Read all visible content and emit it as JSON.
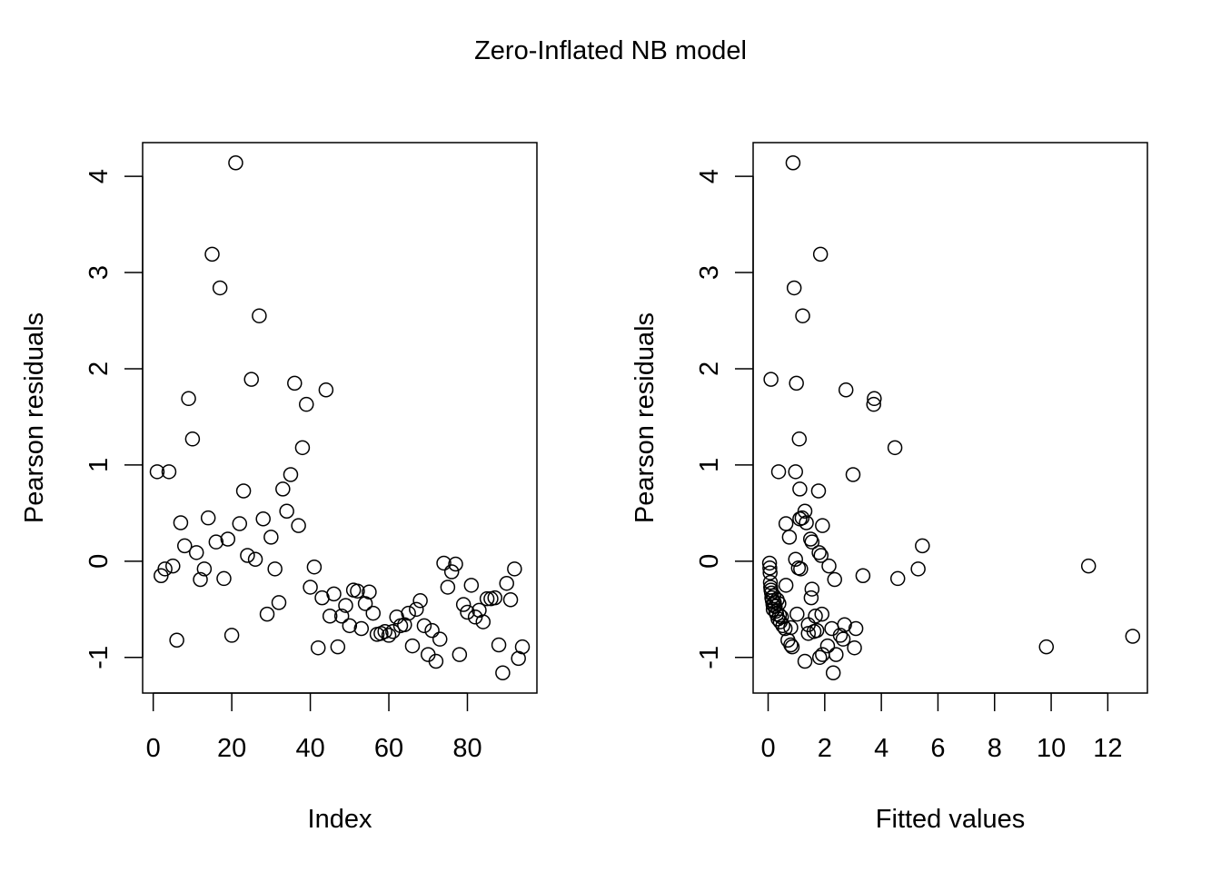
{
  "title": "Zero-Inflated NB model",
  "chart_data": [
    {
      "type": "scatter",
      "xlabel": "Index",
      "ylabel": "Pearson residuals",
      "xlim": [
        -2.7,
        97.7
      ],
      "ylim": [
        -1.37,
        4.35
      ],
      "xticks": [
        "0",
        "20",
        "40",
        "60",
        "80"
      ],
      "yticks": [
        "-1",
        "0",
        "1",
        "2",
        "3",
        "4"
      ],
      "marker": "open-circle",
      "points": [
        [
          1,
          0.93
        ],
        [
          2,
          -0.15
        ],
        [
          3,
          -0.08
        ],
        [
          4,
          0.93
        ],
        [
          5,
          -0.05
        ],
        [
          6,
          -0.82
        ],
        [
          7,
          0.4
        ],
        [
          8,
          0.16
        ],
        [
          9,
          1.69
        ],
        [
          10,
          1.27
        ],
        [
          11,
          0.09
        ],
        [
          12,
          -0.19
        ],
        [
          13,
          -0.08
        ],
        [
          14,
          0.45
        ],
        [
          15,
          3.19
        ],
        [
          16,
          0.2
        ],
        [
          17,
          2.84
        ],
        [
          18,
          -0.18
        ],
        [
          19,
          0.23
        ],
        [
          20,
          -0.77
        ],
        [
          21,
          4.14
        ],
        [
          22,
          0.39
        ],
        [
          23,
          0.73
        ],
        [
          24,
          0.06
        ],
        [
          25,
          1.89
        ],
        [
          26,
          0.02
        ],
        [
          27,
          2.55
        ],
        [
          28,
          0.44
        ],
        [
          29,
          -0.55
        ],
        [
          30,
          0.25
        ],
        [
          31,
          -0.08
        ],
        [
          32,
          -0.43
        ],
        [
          33,
          0.75
        ],
        [
          34,
          0.52
        ],
        [
          35,
          0.9
        ],
        [
          36,
          1.85
        ],
        [
          37,
          0.37
        ],
        [
          38,
          1.18
        ],
        [
          39,
          1.63
        ],
        [
          40,
          -0.27
        ],
        [
          41,
          -0.06
        ],
        [
          42,
          -0.9
        ],
        [
          43,
          -0.38
        ],
        [
          44,
          1.78
        ],
        [
          45,
          -0.57
        ],
        [
          46,
          -0.34
        ],
        [
          47,
          -0.89
        ],
        [
          48,
          -0.57
        ],
        [
          49,
          -0.46
        ],
        [
          50,
          -0.67
        ],
        [
          51,
          -0.3
        ],
        [
          52,
          -0.31
        ],
        [
          53,
          -0.7
        ],
        [
          54,
          -0.44
        ],
        [
          55,
          -0.32
        ],
        [
          56,
          -0.54
        ],
        [
          57,
          -0.76
        ],
        [
          58,
          -0.75
        ],
        [
          59,
          -0.73
        ],
        [
          60,
          -0.77
        ],
        [
          61,
          -0.73
        ],
        [
          62,
          -0.58
        ],
        [
          63,
          -0.67
        ],
        [
          64,
          -0.66
        ],
        [
          65,
          -0.54
        ],
        [
          66,
          -0.88
        ],
        [
          67,
          -0.5
        ],
        [
          68,
          -0.41
        ],
        [
          69,
          -0.67
        ],
        [
          70,
          -0.97
        ],
        [
          71,
          -0.72
        ],
        [
          72,
          -1.04
        ],
        [
          73,
          -0.81
        ],
        [
          74,
          -0.02
        ],
        [
          75,
          -0.27
        ],
        [
          76,
          -0.11
        ],
        [
          77,
          -0.03
        ],
        [
          78,
          -0.97
        ],
        [
          79,
          -0.45
        ],
        [
          80,
          -0.53
        ],
        [
          81,
          -0.25
        ],
        [
          82,
          -0.58
        ],
        [
          83,
          -0.51
        ],
        [
          84,
          -0.63
        ],
        [
          85,
          -0.39
        ],
        [
          86,
          -0.39
        ],
        [
          87,
          -0.38
        ],
        [
          88,
          -0.87
        ],
        [
          89,
          -1.16
        ],
        [
          90,
          -0.23
        ],
        [
          91,
          -0.4
        ],
        [
          92,
          -0.08
        ],
        [
          93,
          -1.01
        ],
        [
          94,
          -0.89
        ]
      ]
    },
    {
      "type": "scatter",
      "xlabel": "Fitted values",
      "ylabel": "Pearson residuals",
      "xlim": [
        -0.53,
        13.4
      ],
      "ylim": [
        -1.37,
        4.35
      ],
      "xticks": [
        "0",
        "2",
        "4",
        "6",
        "8",
        "10",
        "12"
      ],
      "yticks": [
        "-1",
        "0",
        "1",
        "2",
        "3",
        "4"
      ],
      "marker": "open-circle",
      "points": [
        [
          0.05,
          -0.02
        ],
        [
          0.06,
          -0.07
        ],
        [
          0.07,
          -0.12
        ],
        [
          0.08,
          -0.22
        ],
        [
          0.09,
          -0.27
        ],
        [
          0.1,
          -0.3
        ],
        [
          0.12,
          -0.33
        ],
        [
          0.13,
          -0.38
        ],
        [
          0.15,
          -0.41
        ],
        [
          0.17,
          -0.45
        ],
        [
          0.18,
          -0.5
        ],
        [
          0.2,
          -0.36
        ],
        [
          0.22,
          -0.43
        ],
        [
          0.25,
          -0.47
        ],
        [
          0.27,
          -0.52
        ],
        [
          0.3,
          -0.55
        ],
        [
          0.32,
          -0.4
        ],
        [
          0.35,
          -0.6
        ],
        [
          0.38,
          -0.44
        ],
        [
          0.4,
          -0.56
        ],
        [
          0.43,
          -0.63
        ],
        [
          0.47,
          -0.58
        ],
        [
          0.52,
          -0.67
        ],
        [
          0.6,
          -0.7
        ],
        [
          0.7,
          -0.82
        ],
        [
          0.8,
          -0.87
        ],
        [
          0.85,
          -0.89
        ],
        [
          0.1,
          1.89
        ],
        [
          0.37,
          0.93
        ],
        [
          0.63,
          0.39
        ],
        [
          0.63,
          -0.25
        ],
        [
          0.75,
          0.25
        ],
        [
          0.8,
          -0.69
        ],
        [
          0.88,
          4.14
        ],
        [
          0.92,
          2.84
        ],
        [
          0.97,
          0.93
        ],
        [
          0.97,
          0.02
        ],
        [
          1.0,
          1.85
        ],
        [
          1.02,
          -0.55
        ],
        [
          1.07,
          -0.07
        ],
        [
          1.1,
          1.27
        ],
        [
          1.12,
          0.44
        ],
        [
          1.12,
          0.75
        ],
        [
          1.15,
          -0.08
        ],
        [
          1.2,
          0.45
        ],
        [
          1.22,
          2.55
        ],
        [
          1.3,
          0.52
        ],
        [
          1.3,
          -1.04
        ],
        [
          1.35,
          0.4
        ],
        [
          1.42,
          -0.66
        ],
        [
          1.42,
          -0.75
        ],
        [
          1.5,
          0.23
        ],
        [
          1.55,
          0.2
        ],
        [
          1.52,
          -0.38
        ],
        [
          1.55,
          -0.29
        ],
        [
          1.62,
          -0.73
        ],
        [
          1.67,
          -0.57
        ],
        [
          1.72,
          -0.72
        ],
        [
          1.78,
          0.73
        ],
        [
          1.8,
          0.09
        ],
        [
          1.82,
          -1.0
        ],
        [
          1.85,
          3.19
        ],
        [
          1.87,
          0.06
        ],
        [
          1.9,
          -0.55
        ],
        [
          1.92,
          -0.97
        ],
        [
          1.92,
          0.37
        ],
        [
          2.1,
          -0.88
        ],
        [
          2.15,
          -0.05
        ],
        [
          2.25,
          -0.7
        ],
        [
          2.3,
          -1.16
        ],
        [
          2.35,
          -0.19
        ],
        [
          2.4,
          -0.97
        ],
        [
          2.55,
          -0.77
        ],
        [
          2.65,
          -0.81
        ],
        [
          2.7,
          -0.66
        ],
        [
          2.75,
          1.78
        ],
        [
          3.0,
          0.9
        ],
        [
          3.05,
          -0.9
        ],
        [
          3.1,
          -0.7
        ],
        [
          3.35,
          -0.15
        ],
        [
          3.73,
          1.63
        ],
        [
          3.75,
          1.69
        ],
        [
          4.48,
          1.18
        ],
        [
          4.58,
          -0.18
        ],
        [
          5.3,
          -0.08
        ],
        [
          5.45,
          0.16
        ],
        [
          9.83,
          -0.89
        ],
        [
          11.32,
          -0.05
        ],
        [
          12.88,
          -0.78
        ]
      ]
    }
  ]
}
